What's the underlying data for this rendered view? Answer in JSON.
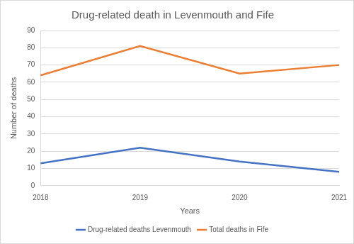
{
  "chart_data": {
    "type": "line",
    "title": "Drug-related death in Levenmouth and Fife",
    "x_label": "Years",
    "y_label": "Number of deaths",
    "categories": [
      "2018",
      "2019",
      "2020",
      "2021"
    ],
    "series": [
      {
        "name": "Drug-related deaths Levenmouth",
        "color": "#4472c4",
        "values": [
          13,
          22,
          14,
          8
        ]
      },
      {
        "name": "Total deaths in Fife",
        "color": "#ed7d31",
        "values": [
          64,
          81,
          65,
          70
        ]
      }
    ],
    "ylim": [
      0,
      90
    ],
    "yticks": [
      0,
      10,
      20,
      30,
      40,
      50,
      60,
      70,
      80,
      90
    ],
    "grid": true,
    "legend": "bottom",
    "marker": "none"
  }
}
